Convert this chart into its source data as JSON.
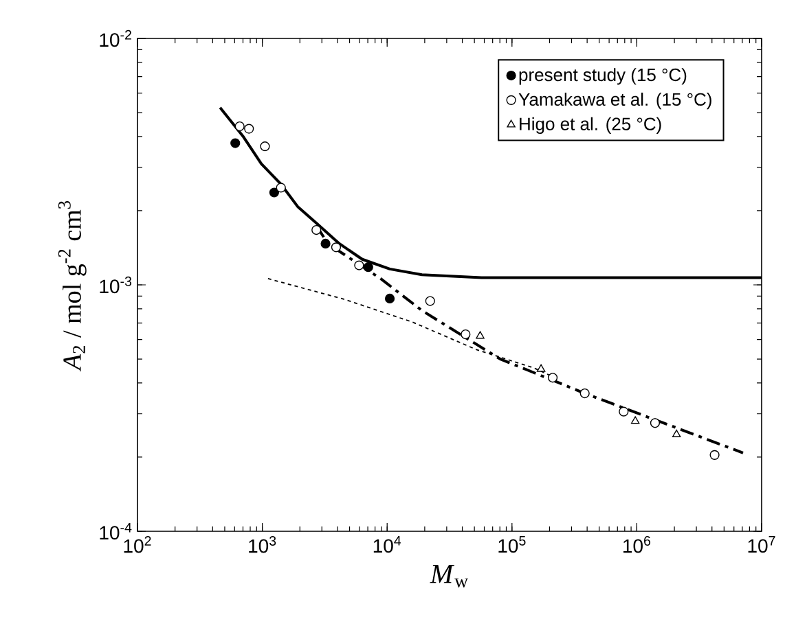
{
  "chart_data": {
    "type": "scatter",
    "xlabel": "*M*$_{w}$",
    "ylabel": "*A*$_{2}$ / mol g$^{-2}$ cm$^{3}$",
    "log": "xy",
    "xlim": [
      100,
      10000000
    ],
    "ylim": [
      0.0001,
      0.01
    ],
    "xticks": [
      {
        "value": 100,
        "label": "10$^{2}$"
      },
      {
        "value": 1000,
        "label": "10$^{3}$"
      },
      {
        "value": 10000,
        "label": "10$^{4}$"
      },
      {
        "value": 100000,
        "label": "10$^{5}$"
      },
      {
        "value": 1000000,
        "label": "10$^{6}$"
      },
      {
        "value": 10000000,
        "label": "10$^{7}$"
      }
    ],
    "yticks": [
      {
        "value": 0.0001,
        "label": "10$^{-4}$"
      },
      {
        "value": 0.001,
        "label": "10$^{-3}$"
      },
      {
        "value": 0.01,
        "label": "10$^{-2}$"
      }
    ],
    "legend": "top right",
    "series": [
      {
        "type": "line",
        "color": "#000000",
        "line_style": "solid",
        "marker": "none",
        "x": [
          459,
          700,
          982,
          1413,
          1932,
          2710,
          4140,
          6320,
          10500,
          19000,
          57000,
          10000000
        ],
        "values": [
          0.00524,
          0.00401,
          0.0031,
          0.00256,
          0.00207,
          0.00178,
          0.00147,
          0.00127,
          0.00116,
          0.0011,
          0.00107,
          0.00107
        ]
      },
      {
        "type": "line",
        "color": "#000000",
        "line_style": "dotted",
        "marker": "none",
        "x": [
          1110,
          4500,
          16000,
          52000,
          150000,
          200000
        ],
        "values": [
          0.00106,
          0.000875,
          0.000706,
          0.000546,
          0.00046,
          0.00043
        ]
      },
      {
        "type": "line",
        "color": "#000000",
        "line_style": "dashed",
        "marker": "none",
        "x": [
          2710,
          3350,
          8870,
          19000,
          80000,
          383000,
          7100000
        ],
        "values": [
          0.00174,
          0.00147,
          0.00106,
          0.000787,
          0.000501,
          0.000363,
          0.000208
        ]
      },
      {
        "name": "present study (15 °C)",
        "color": "#000000",
        "marker": "circle",
        "x": [
          607,
          1245,
          3210,
          7060,
          10500
        ],
        "values": [
          0.00376,
          0.00237,
          0.00147,
          0.00118,
          0.00088
        ]
      },
      {
        "name": "Yamakawa et al. (15 °C)",
        "color": "#ffffff",
        "marker": "circle",
        "x": [
          659,
          782,
          1050,
          1410,
          2710,
          3900,
          5960,
          22100,
          42500,
          212000,
          383000,
          785000,
          1400000,
          4200000
        ],
        "values": [
          0.0044,
          0.0043,
          0.00365,
          0.00248,
          0.00167,
          0.00142,
          0.0012,
          0.00086,
          0.00063,
          0.00042,
          0.000363,
          0.000306,
          0.000275,
          0.000204
        ]
      },
      {
        "name": "Higo et al. (25 °C)",
        "color": "#ffffff",
        "marker": "triangle",
        "x": [
          55600,
          171000,
          972000,
          2080000
        ],
        "values": [
          0.00062,
          0.000455,
          0.00028,
          0.000247
        ]
      }
    ]
  }
}
